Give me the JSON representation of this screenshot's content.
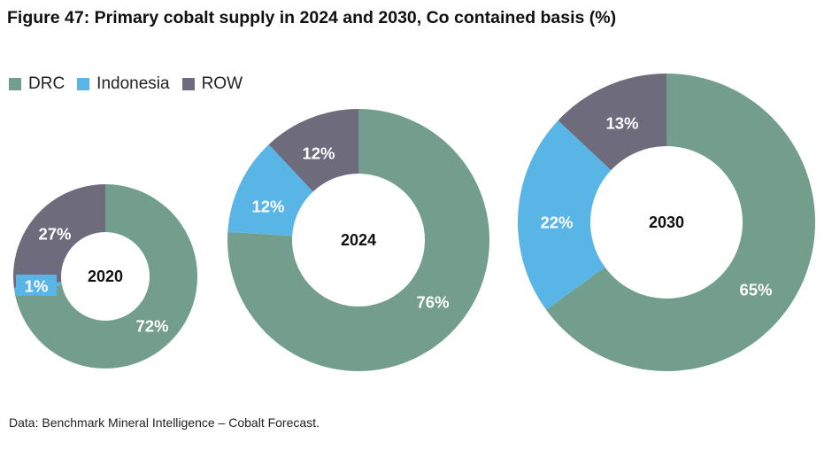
{
  "title": "Figure 47: Primary cobalt supply in 2024 and 2030, Co contained basis (%)",
  "legend": [
    {
      "label": "DRC",
      "color": "#739e8d"
    },
    {
      "label": "Indonesia",
      "color": "#58b5e6"
    },
    {
      "label": "ROW",
      "color": "#6e6b7d"
    }
  ],
  "source": "Data: Benchmark Mineral Intelligence – Cobalt Forecast.",
  "chart_data": [
    {
      "type": "pie",
      "variant": "donut",
      "center_label": "2020",
      "categories": [
        "DRC",
        "Indonesia",
        "ROW"
      ],
      "values": [
        72,
        1,
        27
      ],
      "data_labels": [
        "72%",
        "1%",
        "27%"
      ]
    },
    {
      "type": "pie",
      "variant": "donut",
      "center_label": "2024",
      "categories": [
        "DRC",
        "Indonesia",
        "ROW"
      ],
      "values": [
        76,
        12,
        12
      ],
      "data_labels": [
        "76%",
        "12%",
        "12%"
      ]
    },
    {
      "type": "pie",
      "variant": "donut",
      "center_label": "2030",
      "categories": [
        "DRC",
        "Indonesia",
        "ROW"
      ],
      "values": [
        65,
        22,
        13
      ],
      "data_labels": [
        "65%",
        "22%",
        "13%"
      ]
    }
  ]
}
